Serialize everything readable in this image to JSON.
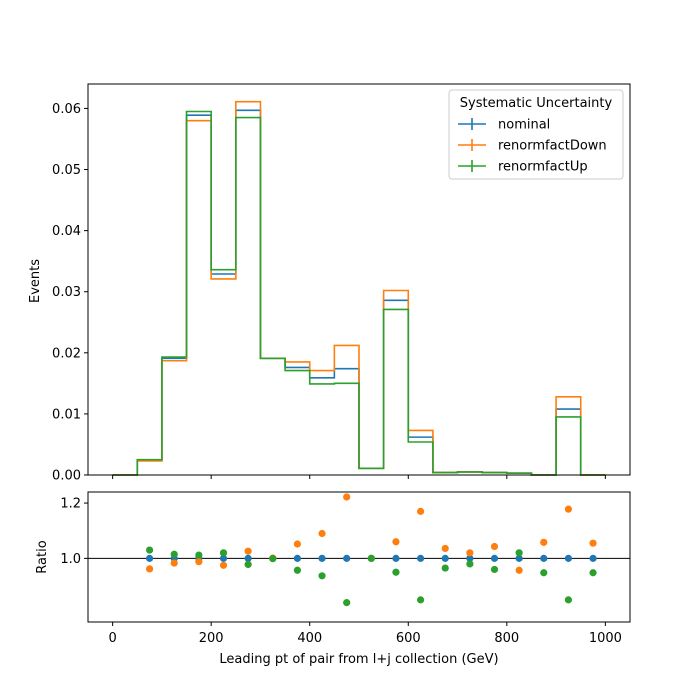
{
  "chart_data": [
    {
      "type": "line",
      "panel": "main",
      "drawstyle": "step-histogram",
      "xlabel": "",
      "ylabel": "Events",
      "xlim": [
        -50,
        1050
      ],
      "ylim": [
        0,
        0.064
      ],
      "yticks": [
        0.0,
        0.01,
        0.02,
        0.03,
        0.04,
        0.05,
        0.06
      ],
      "ytick_labels": [
        "0.00",
        "0.01",
        "0.02",
        "0.03",
        "0.04",
        "0.05",
        "0.06"
      ],
      "xticks": [
        0,
        200,
        400,
        600,
        800,
        1000
      ],
      "bin_edges": [
        0,
        50,
        100,
        150,
        200,
        250,
        300,
        350,
        400,
        450,
        500,
        550,
        600,
        650,
        700,
        750,
        800,
        850,
        900,
        950,
        1000
      ],
      "legend": {
        "title": "Systematic Uncertainty",
        "location": "top-right"
      },
      "series": [
        {
          "name": "nominal",
          "color": "#1f77b4",
          "values": [
            0.0,
            0.0024,
            0.0191,
            0.0589,
            0.0329,
            0.0597,
            0.0191,
            0.0176,
            0.0159,
            0.0174,
            0.0011,
            0.0286,
            0.0062,
            0.0004,
            0.0005,
            0.0004,
            0.0003,
            0.0,
            0.0108,
            0.0
          ]
        },
        {
          "name": "renormfactDown",
          "color": "#ff7f0e",
          "values": [
            0.0,
            0.0023,
            0.0187,
            0.058,
            0.0321,
            0.0611,
            0.0191,
            0.0185,
            0.0171,
            0.0212,
            0.0011,
            0.0302,
            0.0073,
            0.0004,
            0.0005,
            0.0004,
            0.0003,
            0.0,
            0.0128,
            0.0
          ]
        },
        {
          "name": "renormfactUp",
          "color": "#2ca02c",
          "values": [
            0.0,
            0.0025,
            0.0193,
            0.0595,
            0.0336,
            0.0585,
            0.0191,
            0.0171,
            0.0149,
            0.015,
            0.0011,
            0.0271,
            0.0054,
            0.0004,
            0.0005,
            0.0004,
            0.0003,
            0.0,
            0.0095,
            0.0
          ]
        }
      ]
    },
    {
      "type": "scatter",
      "panel": "ratio",
      "xlabel": "Leading pt of pair from l+j collection (GeV)",
      "ylabel": "Ratio",
      "xlim": [
        -50,
        1050
      ],
      "ylim": [
        0.77,
        1.24
      ],
      "yticks": [
        1.0,
        1.2
      ],
      "ytick_labels": [
        "1.0",
        "1.2"
      ],
      "xticks": [
        0,
        200,
        400,
        600,
        800,
        1000
      ],
      "xtick_labels": [
        "0",
        "200",
        "400",
        "600",
        "800",
        "1000"
      ],
      "reference_line": 1.0,
      "x": [
        75,
        125,
        175,
        225,
        275,
        325,
        375,
        425,
        475,
        525,
        575,
        625,
        675,
        725,
        775,
        825,
        875,
        925,
        975
      ],
      "series": [
        {
          "name": "nominal",
          "color": "#1f77b4",
          "values": [
            1.0,
            1.0,
            1.0,
            1.0,
            1.0,
            1.0,
            1.0,
            1.0,
            1.0,
            1.0,
            1.0,
            1.0,
            1.0,
            1.0,
            1.0,
            1.0,
            1.0,
            1.0,
            1.0
          ]
        },
        {
          "name": "renormfactDown",
          "color": "#ff7f0e",
          "values": [
            0.962,
            0.983,
            0.988,
            0.975,
            1.026,
            1.001,
            1.052,
            1.09,
            1.222,
            1.0,
            1.06,
            1.17,
            1.036,
            1.02,
            1.043,
            0.957,
            1.058,
            1.178,
            1.055
          ]
        },
        {
          "name": "renormfactUp",
          "color": "#2ca02c",
          "values": [
            1.03,
            1.015,
            1.012,
            1.02,
            0.978,
            0.999,
            0.957,
            0.937,
            0.84,
            1.0,
            0.95,
            0.85,
            0.965,
            0.98,
            0.96,
            1.02,
            0.948,
            0.85,
            0.948
          ]
        }
      ]
    }
  ]
}
